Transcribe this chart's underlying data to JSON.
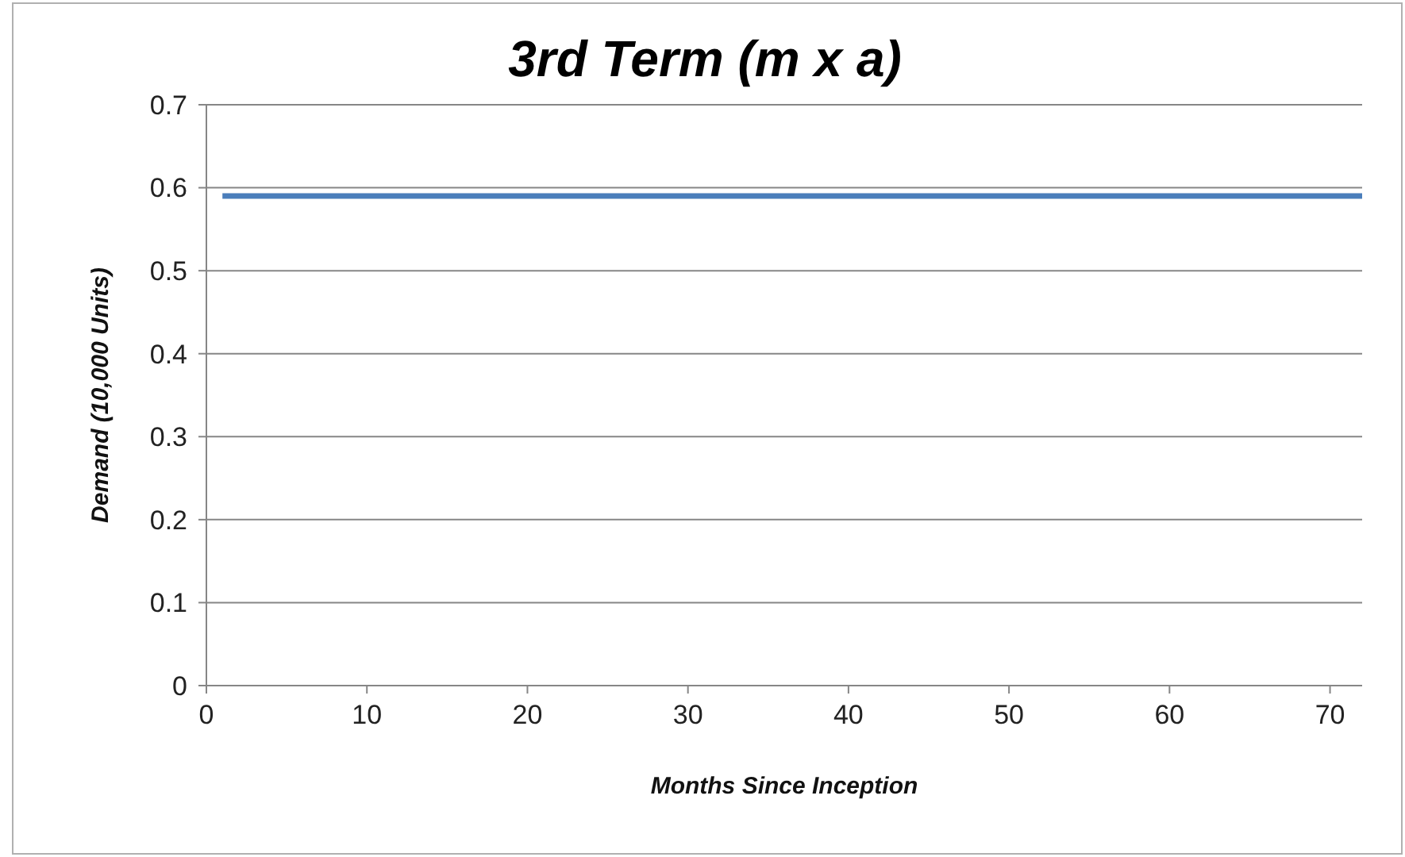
{
  "chart_data": {
    "type": "line",
    "title": "3rd Term (m x a)",
    "xlabel": "Months Since Inception",
    "ylabel": "Demand (10,000 Units)",
    "x": [
      1,
      72
    ],
    "series": [
      {
        "color": "#4a7ebb",
        "values": [
          0.59,
          0.59
        ]
      }
    ],
    "xlim": [
      0,
      72
    ],
    "xticks": [
      0,
      10,
      20,
      30,
      40,
      50,
      60,
      70
    ],
    "ylim": [
      0,
      0.7
    ],
    "yticks": [
      0,
      0.1,
      0.2,
      0.3,
      0.4,
      0.5,
      0.6,
      0.7
    ],
    "grid": "y",
    "marker": "none",
    "line_style": "solid"
  }
}
